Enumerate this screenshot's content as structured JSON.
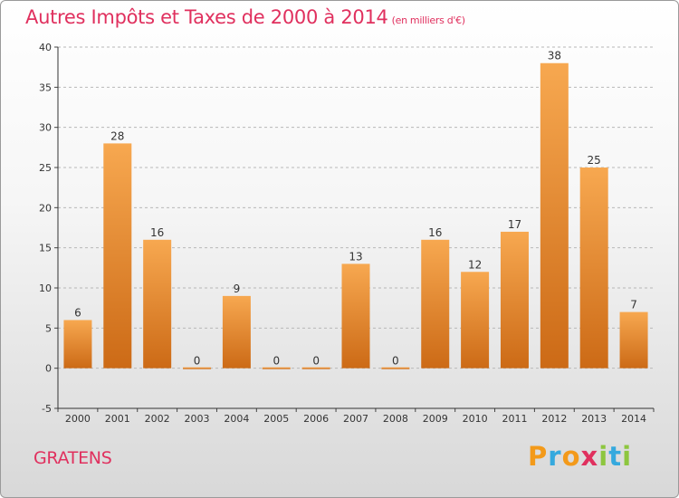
{
  "header": {
    "title": "Autres Impôts et Taxes de 2000 à 2014",
    "subtitle": "(en milliers d'€)"
  },
  "footer": {
    "commune": "GRATENS",
    "logo_text": "Proxiti"
  },
  "colors": {
    "bar_light": "#f7a850",
    "bar_dark": "#cc6a16",
    "title": "#e0305e",
    "logo": [
      "#f39a1a",
      "#35a9de",
      "#f39a1a",
      "#e0305e",
      "#8dc63f",
      "#35a9de",
      "#8dc63f"
    ]
  },
  "chart_data": {
    "type": "bar",
    "categories": [
      "2000",
      "2001",
      "2002",
      "2003",
      "2004",
      "2005",
      "2006",
      "2007",
      "2008",
      "2009",
      "2010",
      "2011",
      "2012",
      "2013",
      "2014"
    ],
    "values": [
      6,
      28,
      16,
      0,
      9,
      0,
      0,
      13,
      0,
      16,
      12,
      17,
      38,
      25,
      7
    ],
    "title": "Autres Impôts et Taxes de 2000 à 2014",
    "subtitle": "(en milliers d'€)",
    "xlabel": "",
    "ylabel": "",
    "ylim": [
      -5,
      40
    ],
    "yticks": [
      -5,
      0,
      5,
      10,
      15,
      20,
      25,
      30,
      35,
      40
    ],
    "grid": "horizontal dashed",
    "legend": "none"
  }
}
